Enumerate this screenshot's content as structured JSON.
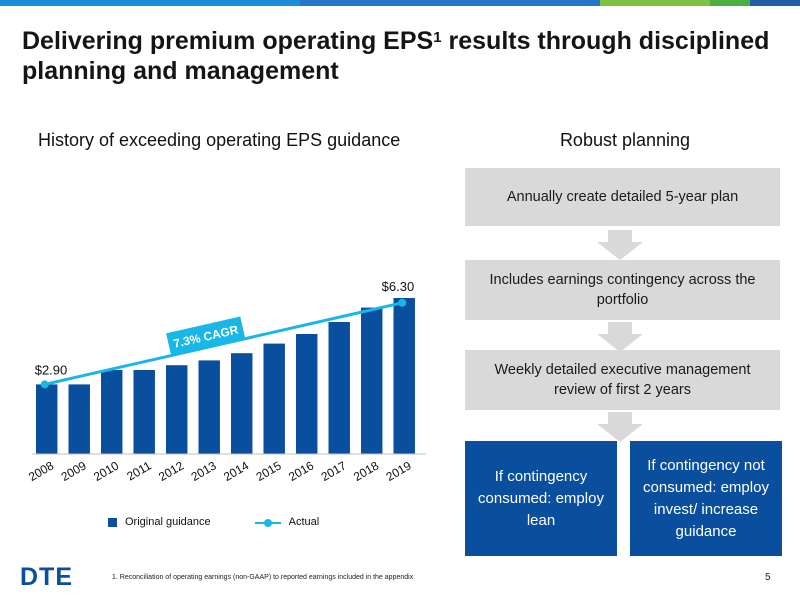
{
  "colors": {
    "brand_blue": "#0a4f9e",
    "actual_line": "#19b6e8",
    "box_gray": "#d9d9d9",
    "topbar": [
      "#1a8fd8",
      "#2577c7",
      "#7ec242",
      "#4caf3f",
      "#1f5fa8"
    ]
  },
  "slide": {
    "title_main": "Delivering premium operating EPS",
    "title_sup": "1",
    "title_rest": " results through disciplined planning and management",
    "left_heading": "History of exceeding operating EPS guidance",
    "right_heading": "Robust planning",
    "logo": "DTE",
    "footnote": "1. Reconciliation of operating earnings (non-GAAP) to reported earnings included in the appendix",
    "page_number": "5"
  },
  "planning": {
    "steps": [
      "Annually create detailed 5-year plan",
      "Includes earnings contingency across the portfolio",
      "Weekly detailed executive management review of first 2 years"
    ],
    "outcome_left": "If contingency consumed: employ lean",
    "outcome_right": "If contingency not consumed: employ invest/ increase guidance"
  },
  "chart_data": {
    "type": "bar",
    "categories": [
      "2008",
      "2009",
      "2010",
      "2011",
      "2012",
      "2013",
      "2014",
      "2015",
      "2016",
      "2017",
      "2018",
      "2019"
    ],
    "series": [
      {
        "name": "Original guidance",
        "type": "bar",
        "values": [
          2.9,
          2.9,
          3.5,
          3.5,
          3.7,
          3.9,
          4.2,
          4.6,
          5.0,
          5.5,
          6.1,
          6.5
        ]
      },
      {
        "name": "Actual",
        "type": "line",
        "points": [
          {
            "x": "2008",
            "y": 2.9,
            "label": "$2.90"
          },
          {
            "x": "2019",
            "y": 6.3,
            "label": "$6.30"
          }
        ]
      }
    ],
    "annotation": "7.3% CAGR",
    "ylim": [
      0,
      7.5
    ],
    "grid": false,
    "legend_position": "bottom"
  }
}
